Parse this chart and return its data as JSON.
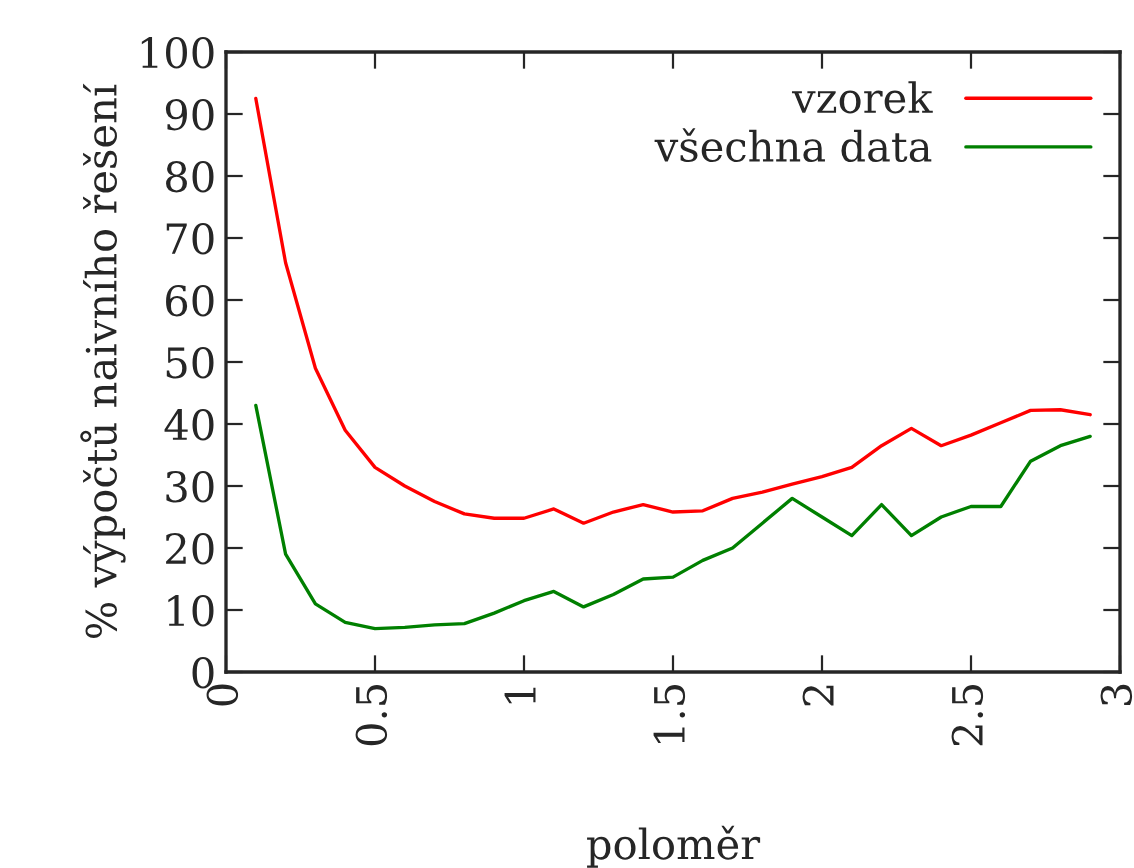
{
  "chart_data": {
    "type": "line",
    "xlabel": "poloměr",
    "ylabel": "% výpočtů naivního řešení",
    "x": [
      0.1,
      0.2,
      0.3,
      0.4,
      0.5,
      0.6,
      0.7,
      0.8,
      0.9,
      1.0,
      1.1,
      1.2,
      1.3,
      1.4,
      1.5,
      1.6,
      1.7,
      1.8,
      1.9,
      2.0,
      2.1,
      2.2,
      2.3,
      2.4,
      2.5,
      2.6,
      2.7,
      2.8,
      2.9
    ],
    "series": [
      {
        "name": "vzorek",
        "color": "#ff0000",
        "values": [
          92.5,
          66,
          49,
          39,
          33,
          30,
          27.5,
          25.5,
          24.8,
          24.8,
          26.3,
          24,
          25.8,
          27,
          25.8,
          26,
          28,
          29,
          30.3,
          31.5,
          33,
          36.5,
          39.3,
          36.5,
          38.2,
          40.2,
          42.2,
          42.3,
          41.5
        ]
      },
      {
        "name": "všechna data",
        "color": "#008000",
        "values": [
          43,
          19,
          11,
          8,
          7,
          7.2,
          7.6,
          7.8,
          9.5,
          11.5,
          13,
          10.5,
          12.5,
          15,
          15.3,
          18,
          20,
          24,
          28,
          25,
          22,
          27,
          22,
          25,
          26.7,
          26.7,
          34,
          36.5,
          38
        ]
      }
    ],
    "xlim": [
      0,
      3
    ],
    "xticks": [
      0,
      0.5,
      1,
      1.5,
      2,
      2.5,
      3
    ],
    "ylim": [
      0,
      100
    ],
    "yticks": [
      0,
      10,
      20,
      30,
      40,
      50,
      60,
      70,
      80,
      90,
      100
    ],
    "grid": false,
    "legend": "top right",
    "marker": "none",
    "line_style": "solid"
  }
}
